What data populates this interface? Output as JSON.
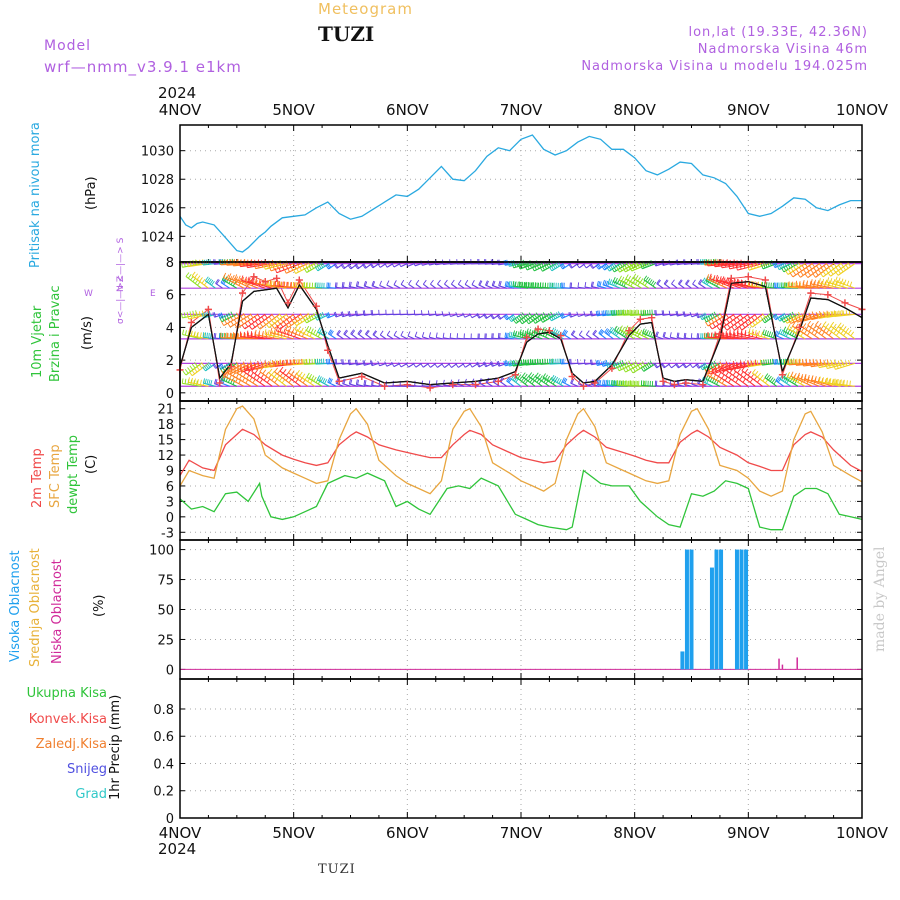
{
  "header": {
    "subtitle": "Meteogram",
    "station": "TUZI",
    "model_label": "Model",
    "model_value": "wrf—nmm_v3.9.1  e1km",
    "coords": "lon,lat (19.33E, 42.36N)",
    "elevation": "Nadmorska Visina 46m",
    "model_elevation": "Nadmorska Visina u modelu 194.025m",
    "year_top": "2024",
    "year_bottom": "2024"
  },
  "footer": {
    "station": "TUZI",
    "made_by": "made by Angel"
  },
  "colors": {
    "pressure": "#2aa9e0",
    "temp2m": "#f04a4a",
    "sfc": "#e8a640",
    "dew": "#2fc43a",
    "visoka": "#1fa0ee",
    "srednja": "#e8b23a",
    "niska": "#d02a9a",
    "ukupna": "#2fc43a",
    "konvek": "#f04a4a",
    "zaledj": "#f08030",
    "snijeg": "#5050e0",
    "grad": "#30c8c8",
    "wind_uv": "#b040e0"
  },
  "labels": {
    "pressure": [
      "Pritisak na nivou mora",
      "(hPa)"
    ],
    "wind": [
      "10m Vjetar",
      "Brzina i Pravac",
      "(m/s)"
    ],
    "wind_compass": {
      "n": "N <—|—> S",
      "w": "W",
      "e": "E",
      "uv": "σ<—|—>Z"
    },
    "temp": [
      "2m Temp",
      "SFC Temp",
      "dewpt Temp",
      "(C)"
    ],
    "cloud": [
      "Visoka Oblacnost",
      "Srednja Oblacnost",
      "Niska Oblacnost",
      "(%)"
    ],
    "precip_axis": "1hr Precip (mm)",
    "precip_legend": [
      "Ukupna Kisa",
      "Konvek.Kisa",
      "Zaledj.Kisa",
      "Snijeg",
      "Grad"
    ]
  },
  "chart_data": [
    {
      "type": "line",
      "panel": "pressure",
      "x_ticks": [
        "4NOV",
        "5NOV",
        "6NOV",
        "7NOV",
        "8NOV",
        "9NOV",
        "10NOV"
      ],
      "xlim": [
        0,
        6
      ],
      "ylim": [
        1022.2,
        1031.8
      ],
      "y_ticks": [
        1024,
        1026,
        1028,
        1030
      ],
      "grid": true,
      "series": [
        {
          "name": "Pritisak na nivou mora",
          "x": [
            0,
            0.05,
            0.1,
            0.15,
            0.2,
            0.3,
            0.4,
            0.5,
            0.55,
            0.6,
            0.7,
            0.75,
            0.8,
            0.9,
            1.0,
            1.1,
            1.2,
            1.3,
            1.4,
            1.5,
            1.6,
            1.7,
            1.8,
            1.9,
            2.0,
            2.1,
            2.2,
            2.3,
            2.4,
            2.5,
            2.6,
            2.7,
            2.8,
            2.9,
            3.0,
            3.1,
            3.2,
            3.3,
            3.4,
            3.5,
            3.6,
            3.7,
            3.8,
            3.9,
            4.0,
            4.1,
            4.2,
            4.3,
            4.4,
            4.5,
            4.6,
            4.7,
            4.8,
            4.9,
            5.0,
            5.1,
            5.2,
            5.3,
            5.4,
            5.5,
            5.6,
            5.7,
            5.8,
            5.9,
            6.0
          ],
          "values": [
            1025.4,
            1024.8,
            1024.6,
            1024.9,
            1025.0,
            1024.8,
            1023.9,
            1023.0,
            1022.9,
            1023.2,
            1024.0,
            1024.3,
            1024.7,
            1025.3,
            1025.4,
            1025.5,
            1026.0,
            1026.4,
            1025.6,
            1025.2,
            1025.4,
            1025.9,
            1026.4,
            1026.9,
            1026.8,
            1027.3,
            1028.1,
            1028.9,
            1028.0,
            1027.9,
            1028.6,
            1029.6,
            1030.2,
            1030.0,
            1030.8,
            1031.1,
            1030.1,
            1029.7,
            1030.0,
            1030.6,
            1031.0,
            1030.8,
            1030.1,
            1030.1,
            1029.5,
            1028.6,
            1028.3,
            1028.7,
            1029.2,
            1029.1,
            1028.3,
            1028.1,
            1027.7,
            1026.8,
            1025.6,
            1025.4,
            1025.6,
            1026.1,
            1026.7,
            1026.6,
            1026.0,
            1025.8,
            1026.2,
            1026.5,
            1026.5
          ]
        }
      ]
    },
    {
      "type": "line",
      "panel": "wind",
      "x_ticks": [
        "4NOV",
        "5NOV",
        "6NOV",
        "7NOV",
        "8NOV",
        "9NOV",
        "10NOV"
      ],
      "xlim": [
        0,
        6
      ],
      "ylim": [
        -0.5,
        8
      ],
      "y_ticks": [
        0,
        2,
        4,
        6,
        8
      ],
      "grid": true,
      "series": [
        {
          "name": "wind speed",
          "x": [
            0,
            0.1,
            0.25,
            0.35,
            0.45,
            0.55,
            0.65,
            0.75,
            0.85,
            0.95,
            1.05,
            1.2,
            1.3,
            1.4,
            1.6,
            1.8,
            2.0,
            2.2,
            2.4,
            2.6,
            2.8,
            2.95,
            3.05,
            3.15,
            3.25,
            3.35,
            3.45,
            3.55,
            3.65,
            3.8,
            3.95,
            4.05,
            4.15,
            4.25,
            4.35,
            4.45,
            4.6,
            4.75,
            4.85,
            5.0,
            5.15,
            5.3,
            5.45,
            5.55,
            5.7,
            5.85,
            6.0
          ],
          "values": [
            1.6,
            4.0,
            4.8,
            0.9,
            1.8,
            5.6,
            6.2,
            6.3,
            6.4,
            5.2,
            6.6,
            5.1,
            2.9,
            0.9,
            1.2,
            0.6,
            0.7,
            0.5,
            0.6,
            0.7,
            0.9,
            1.3,
            3.1,
            3.6,
            3.7,
            3.3,
            1.2,
            0.6,
            0.7,
            1.7,
            3.5,
            4.2,
            4.3,
            0.9,
            0.7,
            0.8,
            0.7,
            3.3,
            6.7,
            6.8,
            6.5,
            1.3,
            3.8,
            5.8,
            5.7,
            5.2,
            4.6
          ]
        },
        {
          "name": "wind gust",
          "x": [
            0,
            0.1,
            0.25,
            0.35,
            0.45,
            0.55,
            0.65,
            0.75,
            0.85,
            0.95,
            1.05,
            1.2,
            1.3,
            1.4,
            1.6,
            1.8,
            2.0,
            2.2,
            2.4,
            2.6,
            2.8,
            2.95,
            3.05,
            3.15,
            3.25,
            3.35,
            3.45,
            3.55,
            3.65,
            3.8,
            3.95,
            4.05,
            4.15,
            4.25,
            4.35,
            4.45,
            4.6,
            4.75,
            4.85,
            5.0,
            5.15,
            5.3,
            5.45,
            5.55,
            5.7,
            5.85,
            6.0
          ],
          "values": [
            1.4,
            4.3,
            5.1,
            0.6,
            1.6,
            6.1,
            7.1,
            6.8,
            7.0,
            5.5,
            6.9,
            5.3,
            2.6,
            0.7,
            1.0,
            0.4,
            0.5,
            0.3,
            0.5,
            0.5,
            0.7,
            1.1,
            3.4,
            3.9,
            3.8,
            3.5,
            1.0,
            0.4,
            0.6,
            1.5,
            3.8,
            4.5,
            4.6,
            0.7,
            0.5,
            0.6,
            0.5,
            3.6,
            7.0,
            7.1,
            6.9,
            1.1,
            4.0,
            6.1,
            6.0,
            5.5,
            5.1
          ]
        }
      ]
    },
    {
      "type": "line",
      "panel": "temperature",
      "x_ticks": [
        "4NOV",
        "5NOV",
        "6NOV",
        "7NOV",
        "8NOV",
        "9NOV",
        "10NOV"
      ],
      "xlim": [
        0,
        6
      ],
      "ylim": [
        -4.5,
        22.5
      ],
      "y_ticks": [
        -3,
        0,
        3,
        6,
        9,
        12,
        15,
        18,
        21
      ],
      "grid": true,
      "series": [
        {
          "name": "2m Temp",
          "x": [
            0,
            0.08,
            0.2,
            0.3,
            0.4,
            0.5,
            0.55,
            0.65,
            0.75,
            0.9,
            1.0,
            1.1,
            1.2,
            1.3,
            1.4,
            1.5,
            1.55,
            1.65,
            1.75,
            1.9,
            2.0,
            2.1,
            2.2,
            2.3,
            2.4,
            2.5,
            2.55,
            2.65,
            2.75,
            2.9,
            3.0,
            3.1,
            3.2,
            3.3,
            3.4,
            3.5,
            3.55,
            3.65,
            3.75,
            3.9,
            4.0,
            4.1,
            4.2,
            4.3,
            4.4,
            4.5,
            4.55,
            4.65,
            4.75,
            4.9,
            5.0,
            5.1,
            5.2,
            5.3,
            5.4,
            5.5,
            5.55,
            5.65,
            5.75,
            5.9,
            6.0
          ],
          "values": [
            8.0,
            11.0,
            9.5,
            9.0,
            14.0,
            16.0,
            17.0,
            16.0,
            14.0,
            12.0,
            11.2,
            10.5,
            10.0,
            10.5,
            14.0,
            15.8,
            16.5,
            15.5,
            14.0,
            13.0,
            12.5,
            12.0,
            11.5,
            11.5,
            14.0,
            16.0,
            16.8,
            16.0,
            14.0,
            12.5,
            11.5,
            11.0,
            10.5,
            10.8,
            14.0,
            16.0,
            16.8,
            15.5,
            13.5,
            12.5,
            11.8,
            11.0,
            10.5,
            10.5,
            14.5,
            16.2,
            16.8,
            15.5,
            13.5,
            12.0,
            10.5,
            9.8,
            9.0,
            9.0,
            14.0,
            16.0,
            16.5,
            15.5,
            13.0,
            10.0,
            8.8
          ]
        },
        {
          "name": "SFC Temp",
          "x": [
            0,
            0.08,
            0.2,
            0.3,
            0.4,
            0.5,
            0.55,
            0.65,
            0.75,
            0.9,
            1.0,
            1.1,
            1.2,
            1.3,
            1.4,
            1.5,
            1.55,
            1.65,
            1.75,
            1.9,
            2.0,
            2.1,
            2.2,
            2.3,
            2.4,
            2.5,
            2.55,
            2.65,
            2.75,
            2.9,
            3.0,
            3.1,
            3.2,
            3.3,
            3.4,
            3.5,
            3.55,
            3.65,
            3.75,
            3.9,
            4.0,
            4.1,
            4.2,
            4.3,
            4.4,
            4.5,
            4.55,
            4.65,
            4.75,
            4.9,
            5.0,
            5.1,
            5.2,
            5.3,
            5.4,
            5.5,
            5.55,
            5.65,
            5.75,
            5.9,
            6.0
          ],
          "values": [
            6.0,
            9.0,
            8.0,
            7.5,
            17.0,
            21.0,
            21.5,
            19.0,
            12.0,
            9.5,
            8.5,
            7.5,
            6.5,
            7.0,
            15.0,
            20.0,
            21.0,
            18.0,
            11.0,
            8.0,
            6.5,
            5.5,
            4.5,
            7.0,
            17.0,
            20.5,
            21.0,
            17.5,
            10.5,
            8.5,
            7.0,
            6.0,
            5.0,
            6.5,
            15.0,
            20.0,
            21.0,
            17.5,
            10.5,
            9.0,
            8.0,
            7.0,
            6.5,
            7.0,
            16.0,
            20.5,
            21.0,
            17.0,
            10.0,
            9.0,
            7.5,
            5.0,
            4.0,
            5.0,
            15.0,
            20.0,
            20.5,
            16.5,
            10.0,
            8.0,
            6.8
          ]
        },
        {
          "name": "dewpt Temp",
          "x": [
            0,
            0.1,
            0.2,
            0.3,
            0.4,
            0.5,
            0.6,
            0.7,
            0.72,
            0.8,
            0.9,
            1.0,
            1.1,
            1.2,
            1.3,
            1.45,
            1.55,
            1.65,
            1.8,
            1.9,
            2.0,
            2.1,
            2.2,
            2.35,
            2.45,
            2.55,
            2.65,
            2.8,
            2.95,
            3.05,
            3.15,
            3.25,
            3.4,
            3.45,
            3.55,
            3.7,
            3.8,
            3.95,
            4.05,
            4.2,
            4.3,
            4.4,
            4.5,
            4.6,
            4.7,
            4.8,
            4.9,
            5.0,
            5.1,
            5.2,
            5.3,
            5.4,
            5.5,
            5.6,
            5.7,
            5.8,
            5.9,
            6.0
          ],
          "values": [
            3.5,
            1.5,
            2.0,
            1.0,
            4.5,
            4.8,
            3.0,
            6.5,
            4.0,
            0.0,
            -0.5,
            0.0,
            1.0,
            2.0,
            6.5,
            8.0,
            7.5,
            8.5,
            7.0,
            2.0,
            3.0,
            1.5,
            0.5,
            5.5,
            6.0,
            5.5,
            7.5,
            6.0,
            0.5,
            -0.5,
            -1.5,
            -2.0,
            -2.5,
            -2.0,
            9.0,
            6.5,
            6.0,
            6.0,
            3.0,
            0.0,
            -1.5,
            -2.0,
            4.5,
            4.0,
            5.0,
            7.0,
            6.5,
            5.5,
            -2.0,
            -2.5,
            -2.5,
            4.0,
            5.5,
            5.5,
            4.5,
            0.5,
            0.0,
            -0.5
          ]
        }
      ]
    },
    {
      "type": "bar",
      "panel": "cloud",
      "x_ticks": [
        "4NOV",
        "5NOV",
        "6NOV",
        "7NOV",
        "8NOV",
        "9NOV",
        "10NOV"
      ],
      "xlim": [
        0,
        6
      ],
      "ylim": [
        -8,
        108
      ],
      "y_ticks": [
        0,
        25,
        50,
        75,
        100
      ],
      "grid": true,
      "series": [
        {
          "name": "Visoka Oblacnost",
          "x": [
            4.42,
            4.46,
            4.5,
            4.68,
            4.72,
            4.76,
            4.9,
            4.94,
            4.98
          ],
          "values": [
            15,
            100,
            100,
            85,
            100,
            100,
            100,
            100,
            100
          ]
        },
        {
          "name": "Srednja Oblacnost",
          "x": [],
          "values": []
        },
        {
          "name": "Niska Oblacnost",
          "x": [
            5.27,
            5.3,
            5.43
          ],
          "values": [
            9,
            4,
            10
          ]
        }
      ]
    },
    {
      "type": "bar",
      "panel": "precipitation",
      "x_ticks": [
        "4NOV",
        "5NOV",
        "6NOV",
        "7NOV",
        "8NOV",
        "9NOV",
        "10NOV"
      ],
      "xlim": [
        0,
        6
      ],
      "ylim": [
        0,
        1.02
      ],
      "y_ticks": [
        0,
        0.2,
        0.4,
        0.6,
        0.8
      ],
      "grid": true,
      "series": [
        {
          "name": "Ukupna Kisa",
          "x": [],
          "values": []
        },
        {
          "name": "Konvek.Kisa",
          "x": [],
          "values": []
        },
        {
          "name": "Zaledj.Kisa",
          "x": [],
          "values": []
        },
        {
          "name": "Snijeg",
          "x": [],
          "values": []
        },
        {
          "name": "Grad",
          "x": [],
          "values": []
        }
      ]
    }
  ]
}
